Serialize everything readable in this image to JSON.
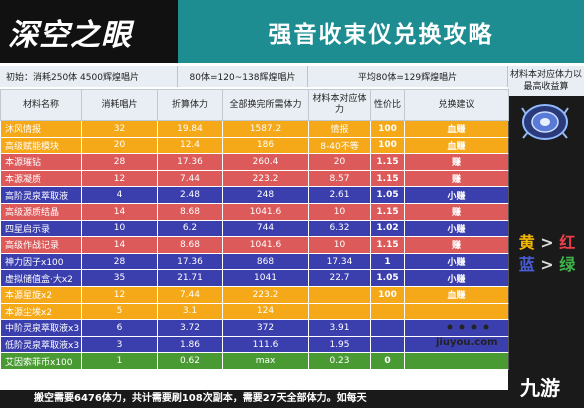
{
  "banner": {
    "logo": "深空之眼",
    "title": "强音收束仪兑换攻略"
  },
  "info": {
    "initial": "初始：消耗250体 4500辉煌唱片",
    "rate1": "80体=120~138辉煌唱片",
    "rate2": "平均80体=129辉煌唱片",
    "side": "材料本对应体力以最高收益算"
  },
  "headers": [
    "材料名称",
    "消耗唱片",
    "折算体力",
    "全部换完所需体力",
    "材料本对应体力",
    "性价比",
    "兑换建议"
  ],
  "rows": [
    {
      "color": "yellow",
      "name": "沐风情报",
      "cost": "32",
      "stamina": "19.84",
      "total": "1587.2",
      "material": "情报",
      "ratio": "100",
      "advice": "血赚"
    },
    {
      "color": "yellow",
      "name": "高级赋能模块",
      "cost": "20",
      "stamina": "12.4",
      "total": "186",
      "material": "8-40不等",
      "ratio": "100",
      "advice": "血赚"
    },
    {
      "color": "red",
      "name": "本源璀钻",
      "cost": "28",
      "stamina": "17.36",
      "total": "260.4",
      "material": "20",
      "ratio": "1.15",
      "advice": "赚"
    },
    {
      "color": "red",
      "name": "本源凝质",
      "cost": "12",
      "stamina": "7.44",
      "total": "223.2",
      "material": "8.57",
      "ratio": "1.15",
      "advice": "赚"
    },
    {
      "color": "blue",
      "name": "高阶灵泉萃取液",
      "cost": "4",
      "stamina": "2.48",
      "total": "248",
      "material": "2.61",
      "ratio": "1.05",
      "advice": "小赚"
    },
    {
      "color": "red",
      "name": "高级源质结晶",
      "cost": "14",
      "stamina": "8.68",
      "total": "1041.6",
      "material": "10",
      "ratio": "1.15",
      "advice": "赚"
    },
    {
      "color": "blue",
      "name": "四星启示录",
      "cost": "10",
      "stamina": "6.2",
      "total": "744",
      "material": "6.32",
      "ratio": "1.02",
      "advice": "小赚"
    },
    {
      "color": "red",
      "name": "高级作战记录",
      "cost": "14",
      "stamina": "8.68",
      "total": "1041.6",
      "material": "10",
      "ratio": "1.15",
      "advice": "赚"
    },
    {
      "color": "blue",
      "name": "神力因子x100",
      "cost": "28",
      "stamina": "17.36",
      "total": "868",
      "material": "17.34",
      "ratio": "1",
      "advice": "小赚"
    },
    {
      "color": "blue",
      "name": "虚拟储值盒·大x2",
      "cost": "35",
      "stamina": "21.71",
      "total": "1041",
      "material": "22.7",
      "ratio": "1.05",
      "advice": "小赚"
    },
    {
      "color": "yellow",
      "name": "本源星旋x2",
      "cost": "12",
      "stamina": "7.44",
      "total": "223.2",
      "material": "",
      "ratio": "100",
      "advice": "血赚"
    },
    {
      "color": "yellow",
      "name": "本源尘埃x2",
      "cost": "5",
      "stamina": "3.1",
      "total": "124",
      "material": "",
      "ratio": "",
      "advice": ""
    },
    {
      "color": "blue",
      "name": "中阶灵泉萃取液x3",
      "cost": "6",
      "stamina": "3.72",
      "total": "372",
      "material": "3.91",
      "ratio": "",
      "advice": ""
    },
    {
      "color": "blue",
      "name": "低阶灵泉萃取液x3",
      "cost": "3",
      "stamina": "1.86",
      "total": "111.6",
      "material": "1.95",
      "ratio": "",
      "advice": ""
    },
    {
      "color": "green",
      "name": "艾因索菲币x100",
      "cost": "1",
      "stamina": "0.62",
      "total": "max",
      "material": "0.23",
      "ratio": "0",
      "advice": ""
    }
  ],
  "legend": {
    "yellow": "黄",
    "red": "红",
    "blue": "蓝",
    "green": "绿",
    "sep": ">"
  },
  "footer": "搬空需要6476体力，共计需要刷108次副本，需要27天全部体力。如每天",
  "watermark": {
    "url": "jiuyou.com",
    "logo": "九游"
  },
  "colors": {
    "banner": "#1e8d92",
    "yellow": "#f5a818",
    "red": "#dc5a5a",
    "blue": "#3b3fae",
    "green": "#4a9a34"
  }
}
